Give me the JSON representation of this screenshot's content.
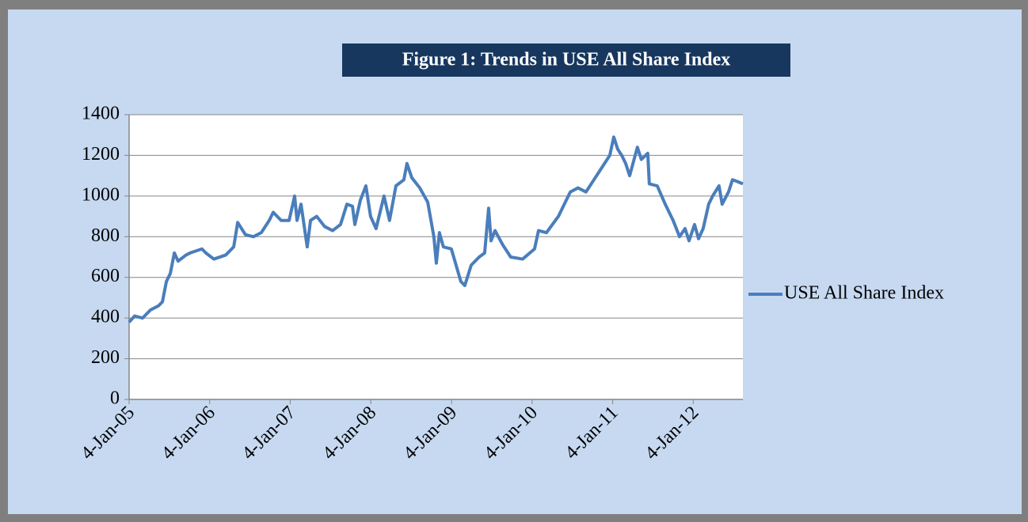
{
  "chart_data": {
    "type": "line",
    "title": "Figure 1: Trends in USE All Share Index",
    "x": [
      "2005-01-04",
      "2005-01-29",
      "2005-03-06",
      "2005-04-11",
      "2005-05-17",
      "2005-06-04",
      "2005-06-22",
      "2005-07-10",
      "2005-07-28",
      "2005-08-14",
      "2005-09-19",
      "2005-10-07",
      "2005-11-30",
      "2005-12-18",
      "2006-01-23",
      "2006-03-18",
      "2006-04-23",
      "2006-05-11",
      "2006-06-15",
      "2006-07-21",
      "2006-08-26",
      "2006-10-01",
      "2006-10-19",
      "2006-11-24",
      "2006-12-30",
      "2007-01-24",
      "2007-02-04",
      "2007-02-22",
      "2007-03-22",
      "2007-04-06",
      "2007-05-04",
      "2007-06-09",
      "2007-07-15",
      "2007-08-20",
      "2007-09-18",
      "2007-10-13",
      "2007-10-24",
      "2007-11-18",
      "2007-12-13",
      "2008-01-03",
      "2008-01-28",
      "2008-03-04",
      "2008-03-29",
      "2008-04-27",
      "2008-06-02",
      "2008-06-16",
      "2008-07-08",
      "2008-08-13",
      "2008-09-18",
      "2008-10-16",
      "2008-10-27",
      "2008-11-10",
      "2008-11-28",
      "2009-01-03",
      "2009-02-15",
      "2009-03-05",
      "2009-04-03",
      "2009-05-09",
      "2009-06-03",
      "2009-06-21",
      "2009-07-02",
      "2009-07-20",
      "2009-08-24",
      "2009-09-29",
      "2009-11-22",
      "2010-01-15",
      "2010-02-02",
      "2010-03-10",
      "2010-05-03",
      "2010-06-26",
      "2010-07-31",
      "2010-09-05",
      "2010-10-11",
      "2010-11-16",
      "2010-12-22",
      "2011-01-09",
      "2011-01-27",
      "2011-02-14",
      "2011-03-04",
      "2011-03-22",
      "2011-04-26",
      "2011-05-14",
      "2011-06-12",
      "2011-06-19",
      "2011-07-25",
      "2011-08-30",
      "2011-10-05",
      "2011-11-03",
      "2011-11-28",
      "2011-12-16",
      "2012-01-10",
      "2012-01-28",
      "2012-02-18",
      "2012-03-14",
      "2012-04-01",
      "2012-04-30",
      "2012-05-14",
      "2012-06-12",
      "2012-06-30",
      "2012-07-25",
      "2012-08-16"
    ],
    "series": [
      {
        "name": "USE All Share Index",
        "color": "#4a7ebb",
        "values": [
          380,
          410,
          400,
          440,
          460,
          480,
          580,
          620,
          720,
          680,
          710,
          720,
          740,
          720,
          690,
          710,
          750,
          870,
          810,
          800,
          820,
          880,
          920,
          880,
          880,
          1000,
          880,
          960,
          750,
          880,
          900,
          850,
          830,
          860,
          960,
          950,
          860,
          980,
          1050,
          900,
          840,
          1000,
          880,
          1050,
          1080,
          1160,
          1090,
          1040,
          970,
          800,
          670,
          820,
          750,
          740,
          580,
          560,
          660,
          700,
          720,
          940,
          780,
          830,
          760,
          700,
          690,
          740,
          830,
          820,
          900,
          1020,
          1040,
          1020,
          1080,
          1140,
          1200,
          1290,
          1230,
          1200,
          1160,
          1100,
          1240,
          1180,
          1210,
          1060,
          1050,
          960,
          880,
          800,
          840,
          780,
          860,
          790,
          840,
          960,
          1000,
          1050,
          960,
          1020,
          1080,
          1070,
          1060
        ]
      }
    ],
    "xlim": [
      "2005-01-04",
      "2012-08-16"
    ],
    "xticks": [
      {
        "value": "2005-01-04",
        "label": "4-Jan-05"
      },
      {
        "value": "2006-01-04",
        "label": "4-Jan-06"
      },
      {
        "value": "2007-01-04",
        "label": "4-Jan-07"
      },
      {
        "value": "2008-01-04",
        "label": "4-Jan-08"
      },
      {
        "value": "2009-01-04",
        "label": "4-Jan-09"
      },
      {
        "value": "2010-01-04",
        "label": "4-Jan-10"
      },
      {
        "value": "2011-01-04",
        "label": "4-Jan-11"
      },
      {
        "value": "2012-01-04",
        "label": "4-Jan-12"
      }
    ],
    "ylim": [
      0,
      1400
    ],
    "yticks": [
      0,
      200,
      400,
      600,
      800,
      1000,
      1200,
      1400
    ],
    "grid": true,
    "legend": "right"
  }
}
